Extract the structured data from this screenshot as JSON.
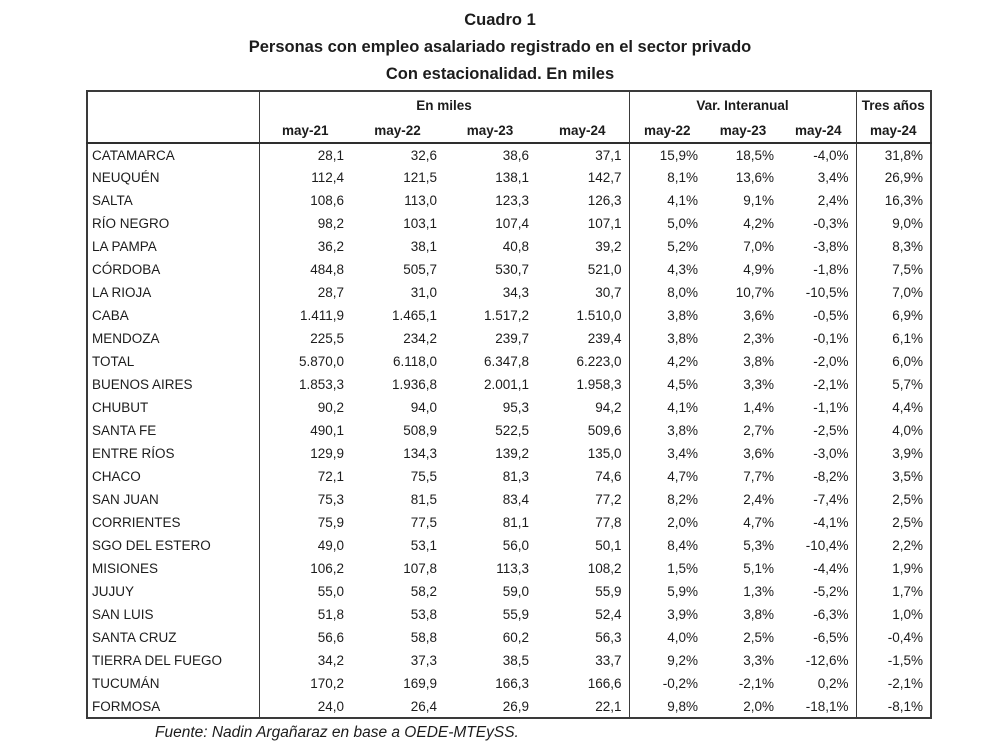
{
  "colors": {
    "background": "#ffffff",
    "text": "#1c1c1c",
    "border": "#3a3a3a"
  },
  "chart_data": {
    "type": "table",
    "title": "Cuadro 1",
    "subtitle": "Personas con empleo asalariado registrado en el sector privado",
    "caption": "Con estacionalidad. En miles",
    "column_groups": [
      {
        "label": "En miles",
        "columns": [
          "may-21",
          "may-22",
          "may-23",
          "may-24"
        ]
      },
      {
        "label": "Var. Interanual",
        "columns": [
          "may-22",
          "may-23",
          "may-24"
        ]
      },
      {
        "label": "Tres años",
        "columns": [
          "may-24"
        ]
      }
    ],
    "rows": [
      {
        "province": "CATAMARCA",
        "en_miles": [
          "28,1",
          "32,6",
          "38,6",
          "37,1"
        ],
        "var_interanual": [
          "15,9%",
          "18,5%",
          "-4,0%"
        ],
        "tres_anos": "31,8%"
      },
      {
        "province": "NEUQUÉN",
        "en_miles": [
          "112,4",
          "121,5",
          "138,1",
          "142,7"
        ],
        "var_interanual": [
          "8,1%",
          "13,6%",
          "3,4%"
        ],
        "tres_anos": "26,9%"
      },
      {
        "province": "SALTA",
        "en_miles": [
          "108,6",
          "113,0",
          "123,3",
          "126,3"
        ],
        "var_interanual": [
          "4,1%",
          "9,1%",
          "2,4%"
        ],
        "tres_anos": "16,3%"
      },
      {
        "province": "RÍO NEGRO",
        "en_miles": [
          "98,2",
          "103,1",
          "107,4",
          "107,1"
        ],
        "var_interanual": [
          "5,0%",
          "4,2%",
          "-0,3%"
        ],
        "tres_anos": "9,0%"
      },
      {
        "province": "LA PAMPA",
        "en_miles": [
          "36,2",
          "38,1",
          "40,8",
          "39,2"
        ],
        "var_interanual": [
          "5,2%",
          "7,0%",
          "-3,8%"
        ],
        "tres_anos": "8,3%"
      },
      {
        "province": "CÓRDOBA",
        "en_miles": [
          "484,8",
          "505,7",
          "530,7",
          "521,0"
        ],
        "var_interanual": [
          "4,3%",
          "4,9%",
          "-1,8%"
        ],
        "tres_anos": "7,5%"
      },
      {
        "province": "LA RIOJA",
        "en_miles": [
          "28,7",
          "31,0",
          "34,3",
          "30,7"
        ],
        "var_interanual": [
          "8,0%",
          "10,7%",
          "-10,5%"
        ],
        "tres_anos": "7,0%"
      },
      {
        "province": "CABA",
        "en_miles": [
          "1.411,9",
          "1.465,1",
          "1.517,2",
          "1.510,0"
        ],
        "var_interanual": [
          "3,8%",
          "3,6%",
          "-0,5%"
        ],
        "tres_anos": "6,9%"
      },
      {
        "province": "MENDOZA",
        "en_miles": [
          "225,5",
          "234,2",
          "239,7",
          "239,4"
        ],
        "var_interanual": [
          "3,8%",
          "2,3%",
          "-0,1%"
        ],
        "tres_anos": "6,1%"
      },
      {
        "province": "TOTAL",
        "en_miles": [
          "5.870,0",
          "6.118,0",
          "6.347,8",
          "6.223,0"
        ],
        "var_interanual": [
          "4,2%",
          "3,8%",
          "-2,0%"
        ],
        "tres_anos": "6,0%"
      },
      {
        "province": "BUENOS AIRES",
        "en_miles": [
          "1.853,3",
          "1.936,8",
          "2.001,1",
          "1.958,3"
        ],
        "var_interanual": [
          "4,5%",
          "3,3%",
          "-2,1%"
        ],
        "tres_anos": "5,7%"
      },
      {
        "province": "CHUBUT",
        "en_miles": [
          "90,2",
          "94,0",
          "95,3",
          "94,2"
        ],
        "var_interanual": [
          "4,1%",
          "1,4%",
          "-1,1%"
        ],
        "tres_anos": "4,4%"
      },
      {
        "province": "SANTA FE",
        "en_miles": [
          "490,1",
          "508,9",
          "522,5",
          "509,6"
        ],
        "var_interanual": [
          "3,8%",
          "2,7%",
          "-2,5%"
        ],
        "tres_anos": "4,0%"
      },
      {
        "province": "ENTRE RÍOS",
        "en_miles": [
          "129,9",
          "134,3",
          "139,2",
          "135,0"
        ],
        "var_interanual": [
          "3,4%",
          "3,6%",
          "-3,0%"
        ],
        "tres_anos": "3,9%"
      },
      {
        "province": "CHACO",
        "en_miles": [
          "72,1",
          "75,5",
          "81,3",
          "74,6"
        ],
        "var_interanual": [
          "4,7%",
          "7,7%",
          "-8,2%"
        ],
        "tres_anos": "3,5%"
      },
      {
        "province": "SAN JUAN",
        "en_miles": [
          "75,3",
          "81,5",
          "83,4",
          "77,2"
        ],
        "var_interanual": [
          "8,2%",
          "2,4%",
          "-7,4%"
        ],
        "tres_anos": "2,5%"
      },
      {
        "province": "CORRIENTES",
        "en_miles": [
          "75,9",
          "77,5",
          "81,1",
          "77,8"
        ],
        "var_interanual": [
          "2,0%",
          "4,7%",
          "-4,1%"
        ],
        "tres_anos": "2,5%"
      },
      {
        "province": "SGO DEL ESTERO",
        "en_miles": [
          "49,0",
          "53,1",
          "56,0",
          "50,1"
        ],
        "var_interanual": [
          "8,4%",
          "5,3%",
          "-10,4%"
        ],
        "tres_anos": "2,2%"
      },
      {
        "province": "MISIONES",
        "en_miles": [
          "106,2",
          "107,8",
          "113,3",
          "108,2"
        ],
        "var_interanual": [
          "1,5%",
          "5,1%",
          "-4,4%"
        ],
        "tres_anos": "1,9%"
      },
      {
        "province": "JUJUY",
        "en_miles": [
          "55,0",
          "58,2",
          "59,0",
          "55,9"
        ],
        "var_interanual": [
          "5,9%",
          "1,3%",
          "-5,2%"
        ],
        "tres_anos": "1,7%"
      },
      {
        "province": "SAN LUIS",
        "en_miles": [
          "51,8",
          "53,8",
          "55,9",
          "52,4"
        ],
        "var_interanual": [
          "3,9%",
          "3,8%",
          "-6,3%"
        ],
        "tres_anos": "1,0%"
      },
      {
        "province": "SANTA CRUZ",
        "en_miles": [
          "56,6",
          "58,8",
          "60,2",
          "56,3"
        ],
        "var_interanual": [
          "4,0%",
          "2,5%",
          "-6,5%"
        ],
        "tres_anos": "-0,4%"
      },
      {
        "province": "TIERRA DEL FUEGO",
        "en_miles": [
          "34,2",
          "37,3",
          "38,5",
          "33,7"
        ],
        "var_interanual": [
          "9,2%",
          "3,3%",
          "-12,6%"
        ],
        "tres_anos": "-1,5%"
      },
      {
        "province": "TUCUMÁN",
        "en_miles": [
          "170,2",
          "169,9",
          "166,3",
          "166,6"
        ],
        "var_interanual": [
          "-0,2%",
          "-2,1%",
          "0,2%"
        ],
        "tres_anos": "-2,1%"
      },
      {
        "province": "FORMOSA",
        "en_miles": [
          "24,0",
          "26,4",
          "26,9",
          "22,1"
        ],
        "var_interanual": [
          "9,8%",
          "2,0%",
          "-18,1%"
        ],
        "tres_anos": "-8,1%"
      }
    ],
    "source": "Fuente: Nadin Argañaraz en base a OEDE-MTEySS."
  }
}
